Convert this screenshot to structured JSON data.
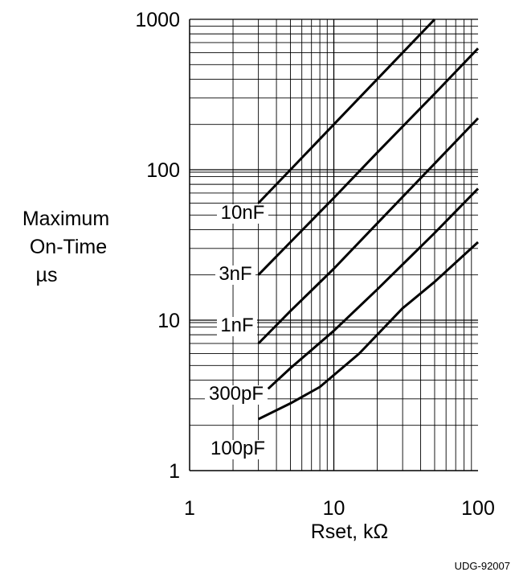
{
  "chart_data": {
    "type": "line",
    "x_scale": "log",
    "y_scale": "log",
    "xlim": [
      1,
      100
    ],
    "ylim": [
      1,
      1000
    ],
    "x_ticks": [
      "1",
      "10",
      "100"
    ],
    "y_ticks": [
      "1",
      "10",
      "100",
      "1000"
    ],
    "xlabel": "Rset, kΩ",
    "ylabel": [
      "Maximum",
      "On-Time",
      "µs"
    ],
    "grid": true,
    "series": [
      {
        "name": "10nF",
        "points": [
          [
            3,
            60
          ],
          [
            5,
            100
          ],
          [
            10,
            200
          ],
          [
            20,
            400
          ],
          [
            50,
            1000
          ]
        ]
      },
      {
        "name": "3nF",
        "points": [
          [
            3,
            20
          ],
          [
            5,
            33
          ],
          [
            10,
            65
          ],
          [
            20,
            130
          ],
          [
            50,
            320
          ],
          [
            100,
            640
          ]
        ]
      },
      {
        "name": "1nF",
        "points": [
          [
            3,
            7
          ],
          [
            5,
            11.5
          ],
          [
            10,
            22
          ],
          [
            20,
            44
          ],
          [
            50,
            110
          ],
          [
            100,
            220
          ]
        ]
      },
      {
        "name": "300pF",
        "points": [
          [
            3.5,
            3.5
          ],
          [
            5,
            4.8
          ],
          [
            10,
            8.5
          ],
          [
            20,
            16
          ],
          [
            50,
            38
          ],
          [
            100,
            75
          ]
        ]
      },
      {
        "name": "100pF",
        "points": [
          [
            3,
            2.2
          ],
          [
            5,
            2.8
          ],
          [
            8,
            3.6
          ],
          [
            15,
            6
          ],
          [
            30,
            12
          ],
          [
            50,
            18
          ],
          [
            100,
            33
          ]
        ]
      }
    ]
  },
  "footer_code": "UDG-92007"
}
